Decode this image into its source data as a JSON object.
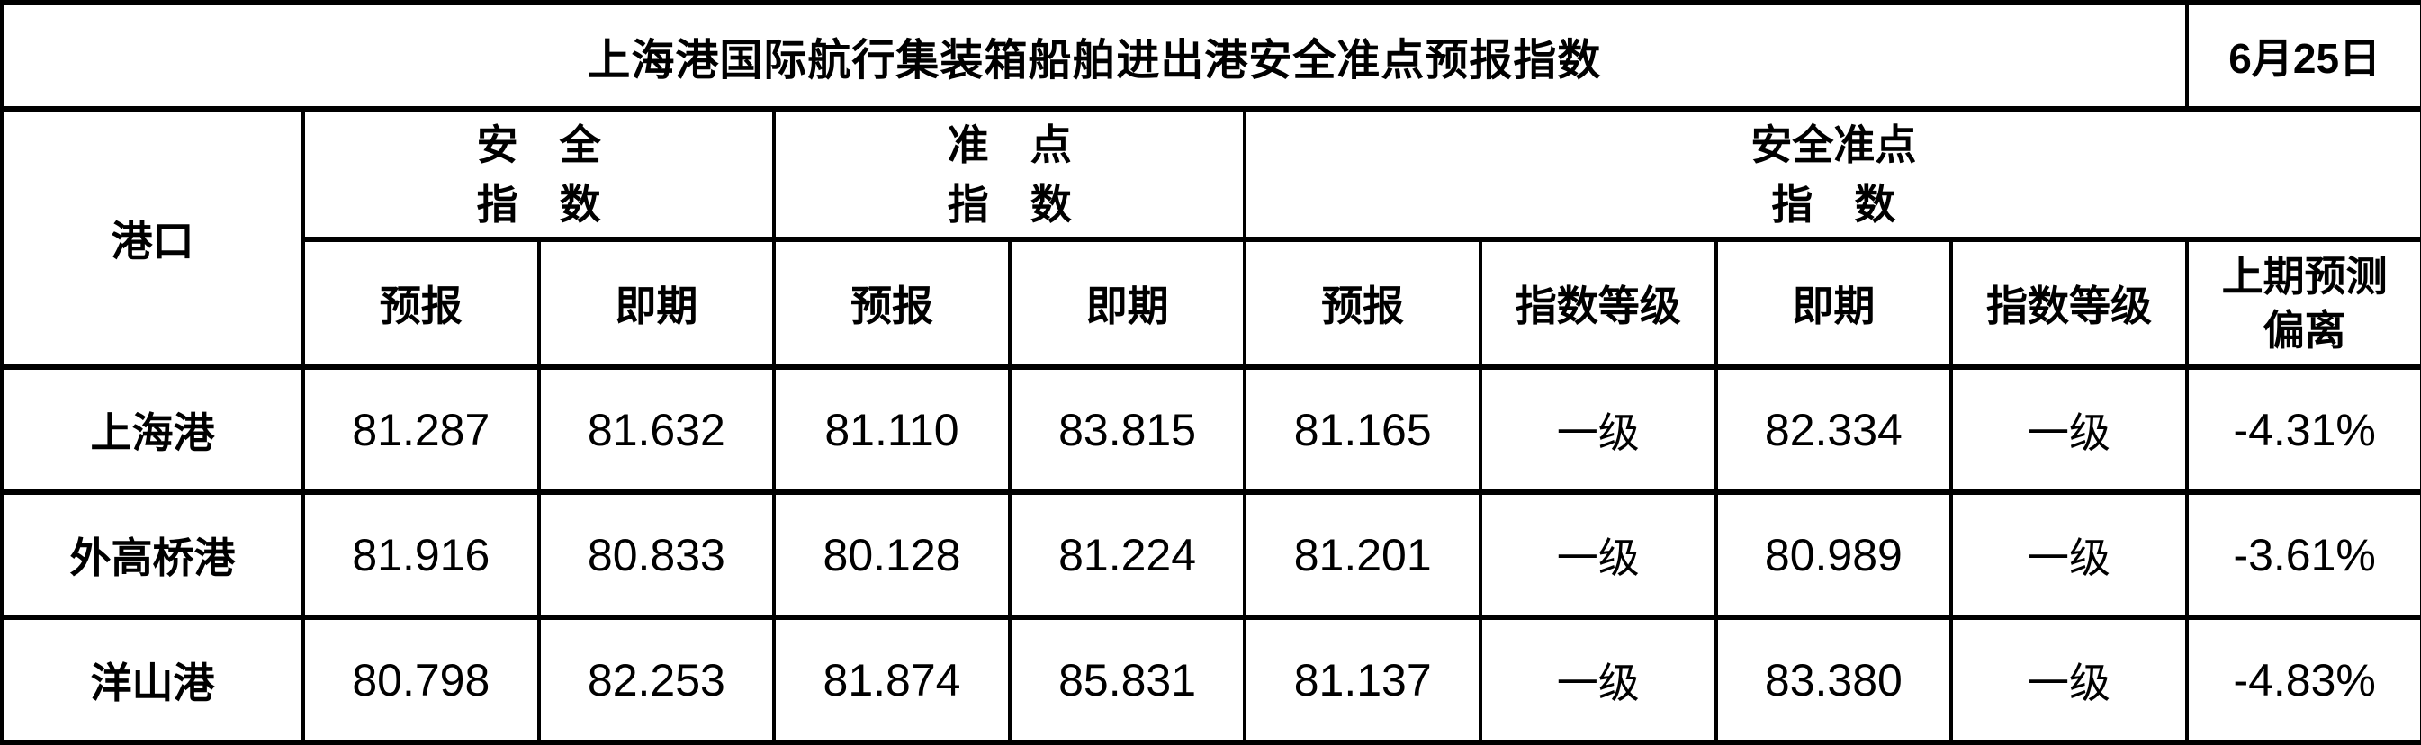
{
  "table": {
    "title": "上海港国际航行集装箱船舶进出港安全准点预报指数",
    "date": "6月25日",
    "header": {
      "port": "港口",
      "groups": [
        {
          "line1": "安　全",
          "line2": "指　数"
        },
        {
          "line1": "准　点",
          "line2": "指　数"
        },
        {
          "line1": "安全准点",
          "line2": "指　数"
        }
      ],
      "sub": [
        "预报",
        "即期",
        "预报",
        "即期",
        "预报",
        "指数等级",
        "即期",
        "指数等级"
      ],
      "deviation": {
        "line1": "上期预测",
        "line2": "偏离"
      }
    },
    "rows": [
      {
        "port": "上海港",
        "values": [
          "81.287",
          "81.632",
          "81.110",
          "83.815",
          "81.165",
          "一级",
          "82.334",
          "一级",
          "-4.31%"
        ]
      },
      {
        "port": "外高桥港",
        "values": [
          "81.916",
          "80.833",
          "80.128",
          "81.224",
          "81.201",
          "一级",
          "80.989",
          "一级",
          "-3.61%"
        ]
      },
      {
        "port": "洋山港",
        "values": [
          "80.798",
          "82.253",
          "81.874",
          "85.831",
          "81.137",
          "一级",
          "83.380",
          "一级",
          "-4.83%"
        ]
      }
    ]
  },
  "colors": {
    "border": "#000000",
    "text": "#000000",
    "background": "#ffffff"
  }
}
